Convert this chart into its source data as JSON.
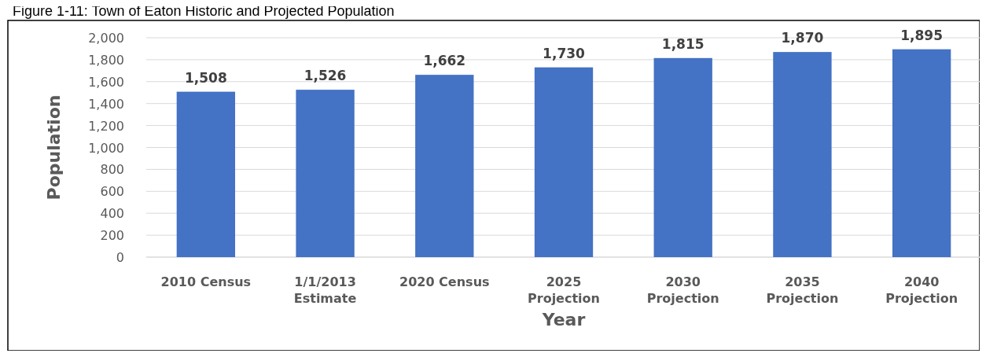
{
  "chart_data": {
    "type": "bar",
    "title": "Figure 1-11: Town of Eaton Historic and Projected Population",
    "xlabel": "Year",
    "ylabel": "Population",
    "categories": [
      "2010 Census",
      "1/1/2013 Estimate",
      "2020 Census",
      "2025 Projection",
      "2030 Projection",
      "2035 Projection",
      "2040 Projection"
    ],
    "values": [
      1508,
      1526,
      1662,
      1730,
      1815,
      1870,
      1895
    ],
    "color": "#4472c4",
    "ylim": [
      0,
      2000
    ],
    "yticks": [
      {
        "value": 0,
        "label": "0"
      },
      {
        "value": 200,
        "label": "200"
      },
      {
        "value": 400,
        "label": "400"
      },
      {
        "value": 600,
        "label": "600"
      },
      {
        "value": 800,
        "label": "800"
      },
      {
        "value": 1000,
        "label": "1,000"
      },
      {
        "value": 1200,
        "label": "1,200"
      },
      {
        "value": 1400,
        "label": "1,400"
      },
      {
        "value": 1600,
        "label": "1,600"
      },
      {
        "value": 1800,
        "label": "1,800"
      },
      {
        "value": 2000,
        "label": "2,000"
      }
    ],
    "value_labels": [
      "1,508",
      "1,526",
      "1,662",
      "1,730",
      "1,815",
      "1,870",
      "1,895"
    ],
    "grid": "y"
  }
}
